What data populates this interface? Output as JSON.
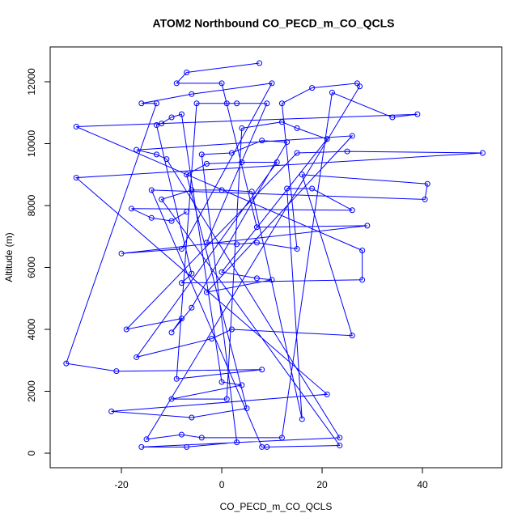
{
  "chart_data": {
    "type": "line",
    "title": "ATOM2 Northbound CO_PECD_m_CO_QCLS",
    "x_label": "CO_PECD_m_CO_QCLS",
    "y_label": "Altitude (m)",
    "color": "#0000ff",
    "markers": true,
    "xlim": [
      -34.2,
      55.8
    ],
    "ylim": [
      -470,
      13124
    ],
    "xticks": [
      -20,
      0,
      20,
      40
    ],
    "yticks": [
      0,
      2000,
      4000,
      6000,
      8000,
      10000,
      12000
    ],
    "x": [
      7.5,
      -7,
      -9,
      0,
      7,
      29,
      -20,
      -8,
      10,
      -6,
      -16,
      -13,
      -31,
      -21,
      8,
      -9,
      -5,
      1,
      3,
      9,
      -3,
      3,
      7,
      15,
      12,
      18,
      27,
      27.5,
      -15,
      -8,
      -4,
      12,
      22,
      34,
      39,
      -29,
      28,
      28,
      -8,
      -6,
      -13,
      -12,
      -10,
      -8,
      0,
      4,
      -10,
      1,
      4,
      12,
      15,
      21,
      0,
      7,
      10,
      -3,
      26,
      -17,
      -13,
      -11,
      23.5,
      -16,
      -7,
      3,
      -4,
      2,
      8,
      13,
      -6,
      -10,
      -8,
      -19,
      15,
      25,
      52,
      -29,
      21,
      -22,
      -6,
      5,
      -7,
      -3,
      4,
      11,
      -17,
      -2,
      2,
      26,
      16,
      41,
      40.5,
      -14,
      8,
      9,
      23.5,
      -12,
      -6,
      0,
      6,
      16,
      13,
      18,
      26,
      -18,
      -14,
      -10,
      -7
    ],
    "y": [
      12600,
      12300,
      11950,
      11950,
      7300,
      7350,
      6450,
      6600,
      11950,
      11600,
      11300,
      11300,
      2900,
      2650,
      2700,
      2400,
      11300,
      11300,
      11300,
      11300,
      6800,
      6750,
      6800,
      6600,
      11300,
      11800,
      11950,
      11850,
      450,
      600,
      500,
      500,
      11650,
      10850,
      10950,
      10550,
      6550,
      5600,
      5500,
      5800,
      10600,
      10650,
      10850,
      10950,
      2300,
      2200,
      1750,
      1750,
      10500,
      10700,
      10500,
      10150,
      5850,
      5650,
      5600,
      5200,
      10250,
      9800,
      9650,
      9500,
      500,
      200,
      200,
      350,
      9650,
      9700,
      10100,
      10050,
      4700,
      3900,
      4350,
      4000,
      9700,
      9750,
      9700,
      8900,
      1900,
      1350,
      1150,
      1450,
      9000,
      9350,
      9400,
      9400,
      3100,
      3700,
      4000,
      3800,
      9000,
      8700,
      8200,
      8500,
      200,
      200,
      250,
      8200,
      8500,
      8500,
      8450,
      1100,
      8550,
      8550,
      7850,
      7900,
      7600,
      7500,
      7800
    ]
  }
}
